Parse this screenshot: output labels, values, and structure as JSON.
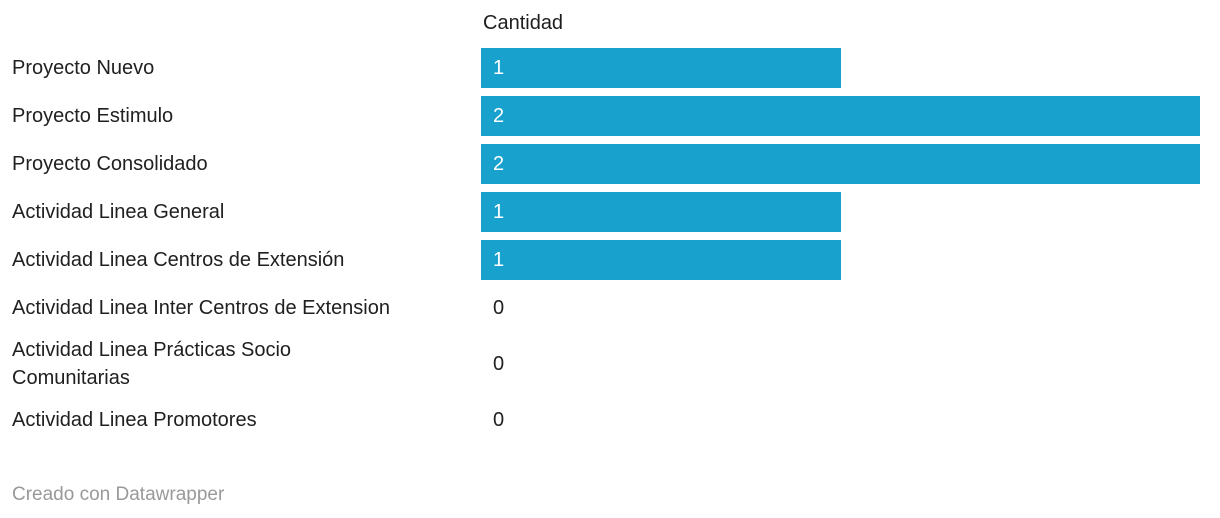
{
  "chart_data": {
    "type": "bar",
    "orientation": "horizontal",
    "column_header": "Cantidad",
    "categories": [
      "Proyecto Nuevo",
      "Proyecto Estimulo",
      "Proyecto Consolidado",
      "Actividad Linea General",
      "Actividad Linea Centros de Extensión",
      "Actividad Linea Inter Centros de Extension",
      "Actividad Linea Prácticas Socio Comunitarias",
      "Actividad Linea Promotores"
    ],
    "values": [
      1,
      2,
      2,
      1,
      1,
      0,
      0,
      0
    ],
    "max_value": 2,
    "grid": false,
    "legend_position": "none",
    "bar_color": "#18a1cd",
    "value_label_inside_color": "#ffffff",
    "value_label_zero_color": "#202020"
  },
  "footer": {
    "attribution": "Creado con Datawrapper"
  }
}
